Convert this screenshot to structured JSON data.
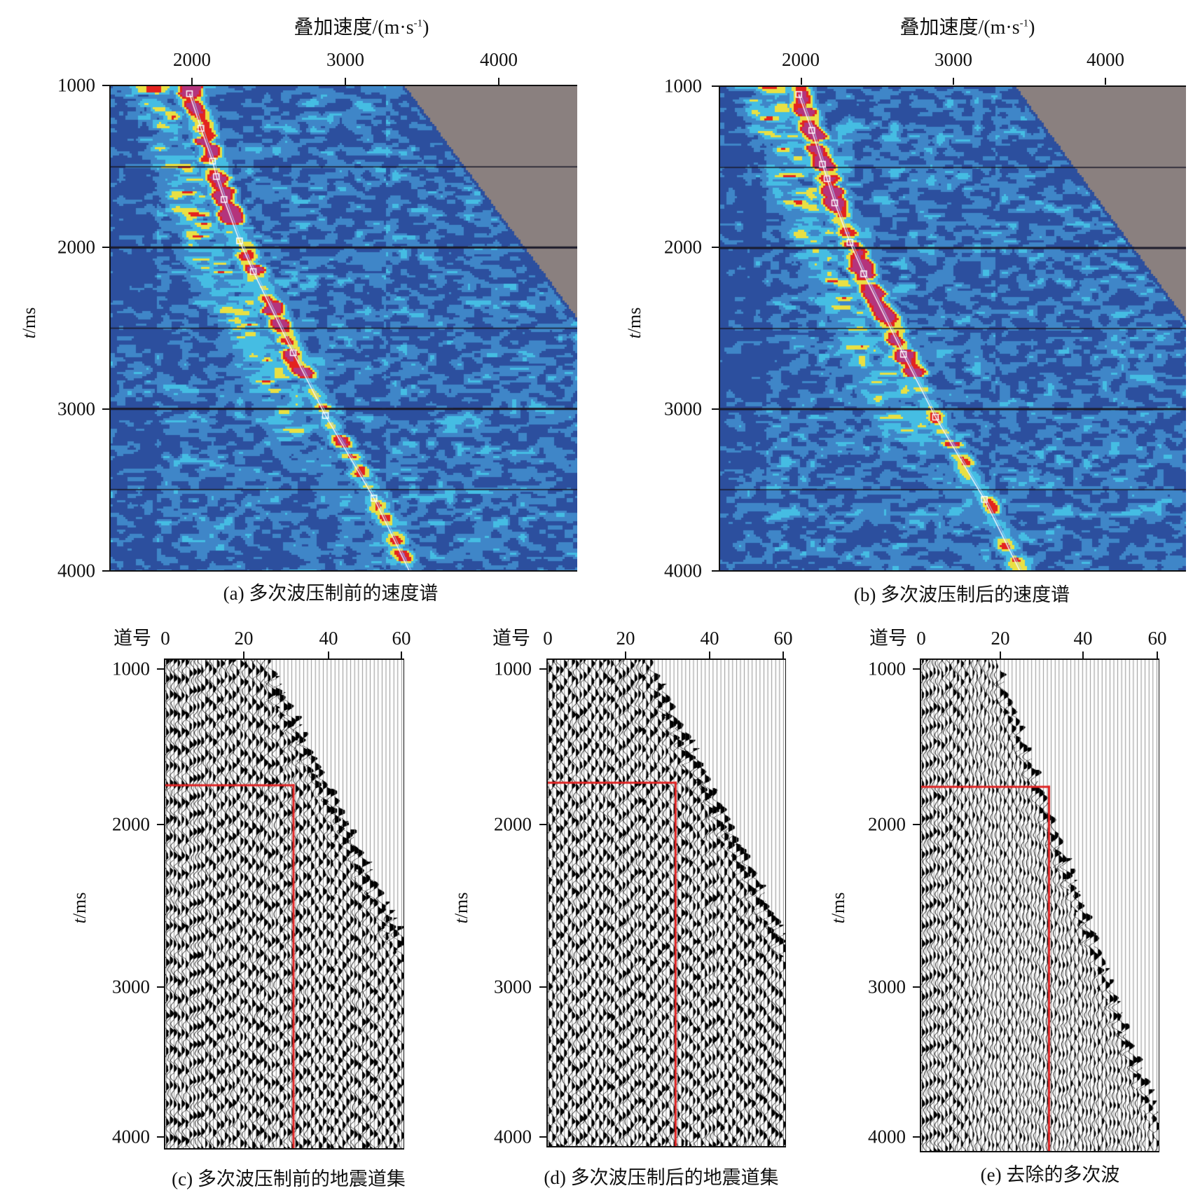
{
  "chart_data": [
    {
      "id": "a",
      "type": "heatmap",
      "caption": "(a) 多次波压制前的速度谱",
      "xlabel_main": "叠加速度/(m·s",
      "xlabel_sup": "-1",
      "xlabel_end": ")",
      "ylabel_italic": "t",
      "ylabel_rest": "/ms",
      "xticks": [
        "2000",
        "3000",
        "4000"
      ],
      "yticks": [
        "1000",
        "2000",
        "3000",
        "4000"
      ],
      "xlim": [
        1460,
        4510
      ],
      "ylim": [
        1000,
        4000
      ],
      "gridlines_t": [
        1500,
        2000,
        2500,
        3000,
        3500
      ],
      "velocity_picks": [
        [
          1975,
          1047
        ],
        [
          2050,
          1261
        ],
        [
          2126,
          1465
        ],
        [
          2151,
          1560
        ],
        [
          2201,
          1702
        ],
        [
          2302,
          1959
        ],
        [
          2392,
          2149
        ],
        [
          2653,
          2652
        ],
        [
          2864,
          3041
        ],
        [
          3181,
          3554
        ],
        [
          3410,
          4000
        ]
      ],
      "mute_boundary": [
        [
          3357,
          1000
        ],
        [
          4510,
          2471
        ]
      ]
    },
    {
      "id": "b",
      "type": "heatmap",
      "caption": "(b) 多次波压制后的速度谱",
      "xlabel_main": "叠加速度/(m·s",
      "xlabel_sup": "-1",
      "xlabel_end": ")",
      "ylabel_italic": "t",
      "ylabel_rest": "/ms",
      "xticks": [
        "2000",
        "3000",
        "4000"
      ],
      "yticks": [
        "1000",
        "2000",
        "3000",
        "4000"
      ],
      "xlim": [
        1460,
        4510
      ],
      "ylim": [
        1000,
        4000
      ],
      "gridlines_t": [
        1500,
        2000,
        2500,
        3000,
        3500
      ],
      "velocity_picks": [
        [
          1975,
          1047
        ],
        [
          2060,
          1270
        ],
        [
          2130,
          1480
        ],
        [
          2160,
          1570
        ],
        [
          2210,
          1720
        ],
        [
          2310,
          1965
        ],
        [
          2400,
          2160
        ],
        [
          2660,
          2660
        ],
        [
          2870,
          3050
        ],
        [
          3190,
          3560
        ],
        [
          3420,
          4000
        ]
      ],
      "mute_boundary": [
        [
          3370,
          1000
        ],
        [
          4510,
          2480
        ]
      ]
    },
    {
      "id": "c",
      "type": "seismic-gather",
      "caption": "(c) 多次波压制前的地震道集",
      "xlabel": "道号",
      "ylabel_italic": "t",
      "ylabel_rest": "/ms",
      "xticks": [
        "0",
        "20",
        "40",
        "60"
      ],
      "yticks": [
        "1000",
        "2000",
        "3000",
        "4000"
      ],
      "xlim": [
        0,
        60
      ],
      "ylim": [
        933,
        4076
      ],
      "red_marker": {
        "trace": 32.5,
        "t": 1740
      },
      "first_break": [
        [
          26,
          933
        ],
        [
          60,
          2700
        ]
      ]
    },
    {
      "id": "d",
      "type": "seismic-gather",
      "caption": "(d) 多次波压制后的地震道集",
      "xlabel": "道号",
      "ylabel_italic": "t",
      "ylabel_rest": "/ms",
      "xticks": [
        "0",
        "20",
        "40",
        "60"
      ],
      "yticks": [
        "1000",
        "2000",
        "3000",
        "4000"
      ],
      "xlim": [
        0,
        60
      ],
      "ylim": [
        933,
        4076
      ],
      "red_marker": {
        "trace": 32.5,
        "t": 1727
      },
      "first_break": [
        [
          26,
          933
        ],
        [
          60,
          2700
        ]
      ]
    },
    {
      "id": "e",
      "type": "seismic-gather",
      "caption": "(e) 去除的多次波",
      "xlabel": "道号",
      "ylabel_italic": "t",
      "ylabel_rest": "/ms",
      "xticks": [
        "0",
        "20",
        "40",
        "60"
      ],
      "yticks": [
        "1000",
        "2000",
        "3000",
        "4000"
      ],
      "xlim": [
        0,
        60
      ],
      "ylim": [
        933,
        4094
      ],
      "red_marker": {
        "trace": 32.5,
        "t": 1750
      },
      "first_break": [
        [
          19,
          933
        ],
        [
          58,
          3700
        ]
      ]
    }
  ],
  "colors": {
    "spectrum_low": "#2c4f9e",
    "spectrum_mid": "#3f86c8",
    "spectrum_cyan": "#45bde3",
    "spectrum_yellow": "#e9e043",
    "spectrum_red": "#e3231f",
    "spectrum_peak": "#b4347c",
    "mute_gray": "#8a807f",
    "marker_red": "#e02424"
  }
}
